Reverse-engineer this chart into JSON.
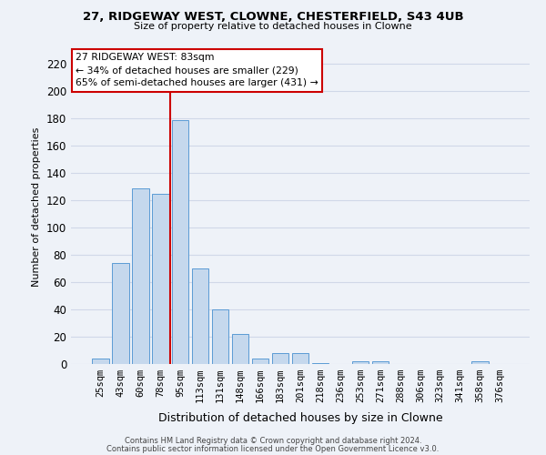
{
  "title": "27, RIDGEWAY WEST, CLOWNE, CHESTERFIELD, S43 4UB",
  "subtitle": "Size of property relative to detached houses in Clowne",
  "xlabel": "Distribution of detached houses by size in Clowne",
  "ylabel": "Number of detached properties",
  "bin_labels": [
    "25sqm",
    "43sqm",
    "60sqm",
    "78sqm",
    "95sqm",
    "113sqm",
    "131sqm",
    "148sqm",
    "166sqm",
    "183sqm",
    "201sqm",
    "218sqm",
    "236sqm",
    "253sqm",
    "271sqm",
    "288sqm",
    "306sqm",
    "323sqm",
    "341sqm",
    "358sqm",
    "376sqm"
  ],
  "bar_heights": [
    4,
    74,
    129,
    125,
    179,
    70,
    40,
    22,
    4,
    8,
    8,
    1,
    0,
    2,
    2,
    0,
    0,
    0,
    0,
    2,
    0
  ],
  "bar_color": "#c5d8ed",
  "bar_edge_color": "#5b9bd5",
  "ylim": [
    0,
    230
  ],
  "yticks": [
    0,
    20,
    40,
    60,
    80,
    100,
    120,
    140,
    160,
    180,
    200,
    220
  ],
  "property_line_x": 3.5,
  "annotation_line1": "27 RIDGEWAY WEST: 83sqm",
  "annotation_line2": "← 34% of detached houses are smaller (229)",
  "annotation_line3": "65% of semi-detached houses are larger (431) →",
  "annotation_box_color": "#ffffff",
  "annotation_box_edge": "#cc0000",
  "vline_color": "#cc0000",
  "grid_color": "#d0d8e8",
  "bg_color": "#eef2f8",
  "footer_line1": "Contains HM Land Registry data © Crown copyright and database right 2024.",
  "footer_line2": "Contains public sector information licensed under the Open Government Licence v3.0."
}
